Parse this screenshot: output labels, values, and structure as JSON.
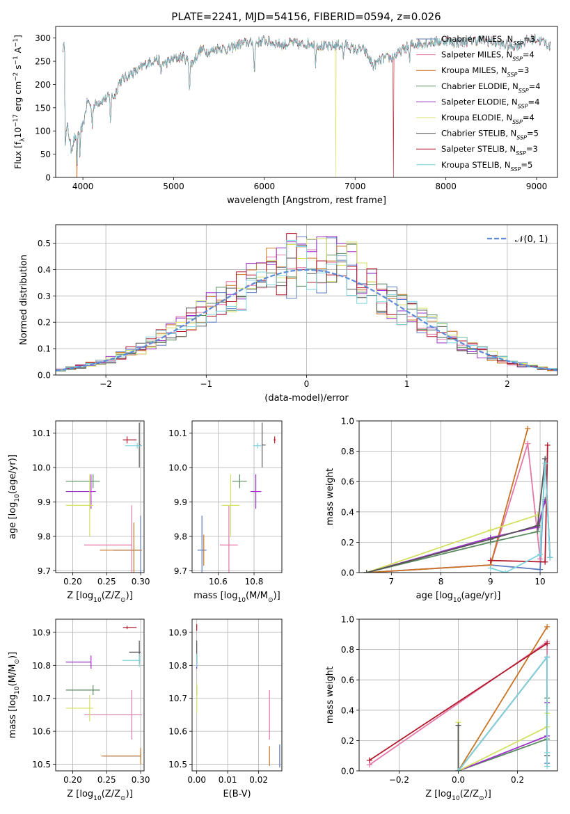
{
  "figure_title": "PLATE=2241, MJD=54156, FIBERID=0594, z=0.026",
  "series_names": [
    "Chabrier MILES, N$_{SSP}$=3",
    "Salpeter MILES, N$_{SSP}$=4",
    "Kroupa MILES, N$_{SSP}$=3",
    "Chabrier ELODIE, N$_{SSP}$=4",
    "Salpeter ELODIE, N$_{SSP}$=4",
    "Kroupa ELODIE, N$_{SSP}$=4",
    "Chabrier STELIB, N$_{SSP}$=5",
    "Salpeter STELIB, N$_{SSP}$=3",
    "Kroupa STELIB, N$_{SSP}$=5"
  ],
  "legend_labels": [
    [
      "Chabrier MILES, N",
      "SSP",
      "=3"
    ],
    [
      "Salpeter MILES, N",
      "SSP",
      "=4"
    ],
    [
      "Kroupa MILES, N",
      "SSP",
      "=3"
    ],
    [
      "Chabrier ELODIE, N",
      "SSP",
      "=4"
    ],
    [
      "Salpeter ELODIE, N",
      "SSP",
      "=4"
    ],
    [
      "Kroupa ELODIE, N",
      "SSP",
      "=4"
    ],
    [
      "Chabrier STELIB, N",
      "SSP",
      "=5"
    ],
    [
      "Salpeter STELIB, N",
      "SSP",
      "=3"
    ],
    [
      "Kroupa STELIB, N",
      "SSP",
      "=5"
    ]
  ],
  "colors": [
    "#5b7bbf",
    "#e377a8",
    "#c87425",
    "#5a8a5f",
    "#9b30c8",
    "#d4e060",
    "#555555",
    "#b2182b",
    "#7fd4dd"
  ],
  "chart_data": [
    {
      "id": "spectrum",
      "type": "line",
      "title": "PLATE=2241, MJD=54156, FIBERID=0594, z=0.026",
      "xlabel": "wavelength [Angstrom, rest frame]",
      "ylabel": [
        "Flux [f",
        "λ",
        "10",
        "−17",
        " erg cm",
        "−2",
        " s",
        "−1",
        " A",
        "−1",
        "]"
      ],
      "xlim": [
        3700,
        9230
      ],
      "ylim": [
        0,
        325
      ],
      "xticks": [
        4000,
        5000,
        6000,
        7000,
        8000,
        9000
      ],
      "yticks": [
        0,
        50,
        100,
        150,
        200,
        250,
        300
      ],
      "legend": "top-right",
      "spectrum_knots": [
        [
          3800,
          75
        ],
        [
          3830,
          110
        ],
        [
          3870,
          60
        ],
        [
          3900,
          80
        ],
        [
          3950,
          100
        ],
        [
          4000,
          110
        ],
        [
          4050,
          165
        ],
        [
          4100,
          150
        ],
        [
          4150,
          160
        ],
        [
          4200,
          165
        ],
        [
          4300,
          175
        ],
        [
          4350,
          175
        ],
        [
          4400,
          205
        ],
        [
          4500,
          220
        ],
        [
          4600,
          230
        ],
        [
          4700,
          245
        ],
        [
          4800,
          255
        ],
        [
          4900,
          245
        ],
        [
          5000,
          255
        ],
        [
          5100,
          260
        ],
        [
          5200,
          245
        ],
        [
          5300,
          275
        ],
        [
          5400,
          270
        ],
        [
          5500,
          280
        ],
        [
          5600,
          275
        ],
        [
          5700,
          285
        ],
        [
          5800,
          290
        ],
        [
          5900,
          290
        ],
        [
          6000,
          295
        ],
        [
          6100,
          290
        ],
        [
          6200,
          285
        ],
        [
          6300,
          290
        ],
        [
          6400,
          285
        ],
        [
          6500,
          290
        ],
        [
          6600,
          285
        ],
        [
          6700,
          280
        ],
        [
          6800,
          285
        ],
        [
          6900,
          285
        ],
        [
          7000,
          275
        ],
        [
          7100,
          275
        ],
        [
          7200,
          240
        ],
        [
          7300,
          255
        ],
        [
          7400,
          258
        ],
        [
          7500,
          270
        ],
        [
          7600,
          285
        ],
        [
          7700,
          288
        ],
        [
          7800,
          290
        ],
        [
          7900,
          292
        ],
        [
          8000,
          295
        ],
        [
          8100,
          290
        ],
        [
          8200,
          292
        ],
        [
          8300,
          295
        ],
        [
          8400,
          295
        ],
        [
          8500,
          292
        ],
        [
          8600,
          288
        ],
        [
          8700,
          282
        ],
        [
          8800,
          285
        ],
        [
          8900,
          295
        ],
        [
          9000,
          298
        ],
        [
          9100,
          290
        ],
        [
          9150,
          280
        ]
      ],
      "absorption_lines": [
        [
          3934,
          70
        ],
        [
          3968,
          60
        ],
        [
          4102,
          40
        ],
        [
          4304,
          55
        ],
        [
          4861,
          35
        ],
        [
          5175,
          60
        ],
        [
          5890,
          70
        ],
        [
          6563,
          40
        ],
        [
          6870,
          30
        ],
        [
          7600,
          40
        ]
      ],
      "masked_drops": [
        [
          3933,
          2
        ],
        [
          6785,
          5
        ],
        [
          7420,
          7
        ]
      ]
    },
    {
      "id": "residual-histogram",
      "type": "histogram",
      "xlabel": "(data-model)/error",
      "ylabel": "Normed distribution",
      "xlim": [
        -2.5,
        2.5
      ],
      "ylim": [
        0,
        0.57
      ],
      "xticks": [
        -2,
        -1,
        0,
        1,
        2
      ],
      "yticks": [
        0.0,
        0.1,
        0.2,
        0.3,
        0.4,
        0.5
      ],
      "reference_curve": "N(0,1)",
      "legend_label": "𝒩(0, 1)",
      "legend": "top-right",
      "bin_width": 0.1,
      "bin_start": -2.5
    },
    {
      "id": "age-vs-Z",
      "type": "errorbar",
      "xlabel": [
        "Z [log",
        "10",
        "(Z/Z",
        "⊙",
        ")]"
      ],
      "ylabel": [
        "age  [log",
        "10",
        "(age/yr)]"
      ],
      "xlim": [
        0.175,
        0.305
      ],
      "ylim": [
        9.695,
        10.135
      ],
      "xticks": [
        0.2,
        0.25,
        0.3
      ],
      "yticks": [
        9.7,
        9.8,
        9.9,
        10.0,
        10.1
      ],
      "points": [
        {
          "x": 0.3,
          "y": 9.76,
          "xerr_lo": 0.04,
          "xerr_hi": 0.0,
          "yerr": 0.1
        },
        {
          "x": 0.287,
          "y": 9.775,
          "xerr_lo": 0.07,
          "xerr_hi": 0.0,
          "yerr": 0.115
        },
        {
          "x": 0.29,
          "y": 9.76,
          "xerr_lo": 0.05,
          "xerr_hi": 0.012,
          "yerr": 0.08
        },
        {
          "x": 0.23,
          "y": 9.96,
          "xerr_lo": 0.04,
          "xerr_hi": 0.01,
          "yerr": 0.02
        },
        {
          "x": 0.227,
          "y": 9.93,
          "xerr_lo": 0.037,
          "xerr_hi": 0.007,
          "yerr": 0.05
        },
        {
          "x": 0.225,
          "y": 9.89,
          "xerr_lo": 0.035,
          "xerr_hi": 0.005,
          "yerr": 0.09
        },
        {
          "x": 0.298,
          "y": 10.065,
          "xerr_lo": 0.0,
          "xerr_hi": 0.002,
          "yerr": 0.065
        },
        {
          "x": 0.28,
          "y": 10.08,
          "xerr_lo": 0.006,
          "xerr_hi": 0.014,
          "yerr": 0.01
        },
        {
          "x": 0.295,
          "y": 10.063,
          "xerr_lo": 0.018,
          "xerr_hi": 0.007,
          "yerr": 0.008
        }
      ]
    },
    {
      "id": "age-vs-mass",
      "type": "errorbar",
      "xlabel": [
        "mass [log",
        "10",
        "(M/M",
        "⊙",
        ")]"
      ],
      "ylabel": "",
      "xlim": [
        10.455,
        10.955
      ],
      "ylim": [
        9.695,
        10.135
      ],
      "xticks": [
        10.6,
        10.8
      ],
      "yticks": [
        9.7,
        9.8,
        9.9,
        10.0,
        10.1
      ],
      "points": [
        {
          "x": 10.51,
          "y": 9.76,
          "xerr_lo": 0.025,
          "xerr_hi": 0.025,
          "yerr": 0.1
        },
        {
          "x": 10.66,
          "y": 9.775,
          "xerr_lo": 0.05,
          "xerr_hi": 0.05,
          "yerr": 0.115
        },
        {
          "x": 10.52,
          "y": 9.76,
          "xerr_lo": 0.0,
          "xerr_hi": 0.0,
          "yerr": 0.045
        },
        {
          "x": 10.72,
          "y": 9.96,
          "xerr_lo": 0.04,
          "xerr_hi": 0.04,
          "yerr": 0.02
        },
        {
          "x": 10.81,
          "y": 9.93,
          "xerr_lo": 0.03,
          "xerr_hi": 0.03,
          "yerr": 0.05
        },
        {
          "x": 10.67,
          "y": 9.89,
          "xerr_lo": 0.05,
          "xerr_hi": 0.05,
          "yerr": 0.09
        },
        {
          "x": 10.845,
          "y": 10.065,
          "xerr_lo": 0.0,
          "xerr_hi": 0.02,
          "yerr": 0.065
        },
        {
          "x": 10.915,
          "y": 10.08,
          "xerr_lo": 0.006,
          "xerr_hi": 0.006,
          "yerr": 0.01
        },
        {
          "x": 10.82,
          "y": 10.063,
          "xerr_lo": 0.025,
          "xerr_hi": 0.02,
          "yerr": 0.008
        }
      ]
    },
    {
      "id": "weight-vs-age",
      "type": "line",
      "xlabel": [
        "age  [log",
        "10",
        "(age/yr)]"
      ],
      "ylabel": "mass weight",
      "xlim": [
        6.35,
        10.35
      ],
      "ylim": [
        0,
        1.0
      ],
      "xticks": [
        7,
        8,
        9,
        10
      ],
      "yticks": [
        0.0,
        0.2,
        0.4,
        0.6,
        0.8,
        1.0
      ],
      "series": [
        {
          "points": [
            [
              6.5,
              0.0
            ],
            [
              9.0,
              0.05
            ],
            [
              10.0,
              0.02
            ],
            [
              10.1,
              0.75
            ],
            [
              10.2,
              0.1
            ]
          ]
        },
        {
          "points": [
            [
              6.5,
              0.0
            ],
            [
              9.0,
              0.05
            ],
            [
              9.75,
              0.85
            ],
            [
              10.0,
              0.09
            ]
          ]
        },
        {
          "points": [
            [
              6.5,
              0.0
            ],
            [
              9.0,
              0.05
            ],
            [
              9.75,
              0.95
            ]
          ]
        },
        {
          "points": [
            [
              6.5,
              0.0
            ],
            [
              9.0,
              0.2
            ],
            [
              9.95,
              0.27
            ],
            [
              10.1,
              0.48
            ]
          ]
        },
        {
          "points": [
            [
              6.5,
              0.0
            ],
            [
              9.0,
              0.23
            ],
            [
              9.95,
              0.3
            ],
            [
              10.1,
              0.47
            ]
          ]
        },
        {
          "points": [
            [
              6.5,
              0.0
            ],
            [
              9.0,
              0.28
            ],
            [
              9.95,
              0.38
            ]
          ]
        },
        {
          "points": [
            [
              6.5,
              0.0
            ],
            [
              9.0,
              0.22
            ],
            [
              9.95,
              0.31
            ],
            [
              10.1,
              0.75
            ],
            [
              10.2,
              0.1
            ]
          ]
        },
        {
          "points": [
            [
              9.0,
              0.08
            ],
            [
              10.1,
              0.07
            ],
            [
              10.15,
              0.84
            ]
          ]
        },
        {
          "points": [
            [
              9.0,
              0.03
            ],
            [
              9.3,
              0.0
            ],
            [
              10.0,
              0.12
            ],
            [
              10.1,
              0.72
            ],
            [
              10.2,
              0.1
            ]
          ]
        }
      ]
    },
    {
      "id": "mass-vs-Z",
      "type": "errorbar",
      "xlabel": [
        "Z [log",
        "10",
        "(Z/Z",
        "⊙",
        ")]"
      ],
      "ylabel": [
        "mass [log",
        "10",
        "(M/M",
        "⊙",
        ")]"
      ],
      "xlim": [
        0.175,
        0.305
      ],
      "ylim": [
        10.48,
        10.94
      ],
      "xticks": [
        0.2,
        0.25,
        0.3
      ],
      "yticks": [
        10.5,
        10.6,
        10.7,
        10.8,
        10.9
      ],
      "points": [
        {
          "x": 0.3,
          "y": 10.525,
          "xerr_lo": 0.055,
          "xerr_hi": 0.0,
          "yerr": 0.01
        },
        {
          "x": 0.287,
          "y": 10.65,
          "xerr_lo": 0.07,
          "xerr_hi": 0.015,
          "yerr": 0.075
        },
        {
          "x": 0.3,
          "y": 10.525,
          "xerr_lo": 0.058,
          "xerr_hi": 0.0,
          "yerr": 0.025
        },
        {
          "x": 0.23,
          "y": 10.725,
          "xerr_lo": 0.04,
          "xerr_hi": 0.01,
          "yerr": 0.015
        },
        {
          "x": 0.227,
          "y": 10.81,
          "xerr_lo": 0.037,
          "xerr_hi": 0.0,
          "yerr": 0.02
        },
        {
          "x": 0.225,
          "y": 10.67,
          "xerr_lo": 0.035,
          "xerr_hi": 0.005,
          "yerr": 0.04
        },
        {
          "x": 0.298,
          "y": 10.84,
          "xerr_lo": 0.015,
          "xerr_hi": 0.002,
          "yerr": 0.035
        },
        {
          "x": 0.28,
          "y": 10.915,
          "xerr_lo": 0.006,
          "xerr_hi": 0.014,
          "yerr": 0.005
        },
        {
          "x": 0.298,
          "y": 10.815,
          "xerr_lo": 0.025,
          "xerr_hi": 0.002,
          "yerr": 0.02
        }
      ]
    },
    {
      "id": "mass-vs-ebv",
      "type": "errorbar",
      "xlabel": "E(B-V)",
      "ylabel": "",
      "xlim": [
        -0.0015,
        0.0275
      ],
      "ylim": [
        10.48,
        10.94
      ],
      "xticks": [
        0.0,
        0.01,
        0.02
      ],
      "yticks": [
        10.5,
        10.6,
        10.7,
        10.8,
        10.9
      ],
      "points": [
        {
          "x": 0.0268,
          "y": 10.525,
          "xerr_lo": 0,
          "xerr_hi": 0,
          "yerr": 0.035
        },
        {
          "x": 0.0235,
          "y": 10.65,
          "xerr_lo": 0,
          "xerr_hi": 0,
          "yerr": 0.075
        },
        {
          "x": 0.0235,
          "y": 10.525,
          "xerr_lo": 0,
          "xerr_hi": 0,
          "yerr": 0.03
        },
        {
          "x": 0.0,
          "y": 10.725,
          "xerr_lo": 0,
          "xerr_hi": 0,
          "yerr": 0.015
        },
        {
          "x": 0.0,
          "y": 10.81,
          "xerr_lo": 0,
          "xerr_hi": 0,
          "yerr": 0.02
        },
        {
          "x": 0.0,
          "y": 10.7,
          "xerr_lo": 0,
          "xerr_hi": 0,
          "yerr": 0.045
        },
        {
          "x": 0.0,
          "y": 10.84,
          "xerr_lo": 0,
          "xerr_hi": 0,
          "yerr": 0.035
        },
        {
          "x": 0.0,
          "y": 10.915,
          "xerr_lo": 0,
          "xerr_hi": 0,
          "yerr": 0.01
        },
        {
          "x": 0.0,
          "y": 10.815,
          "xerr_lo": 0,
          "xerr_hi": 0,
          "yerr": 0.02
        }
      ]
    },
    {
      "id": "weight-vs-Z",
      "type": "line",
      "xlabel": [
        "Z [log",
        "10",
        "(Z/Z",
        "⊙",
        ")]"
      ],
      "ylabel": "mass weight",
      "xlim": [
        -0.335,
        0.335
      ],
      "ylim": [
        0,
        1.0
      ],
      "xticks": [
        -0.2,
        0.0,
        0.2
      ],
      "yticks": [
        0.0,
        0.2,
        0.4,
        0.6,
        0.8,
        1.0
      ],
      "series": [
        {
          "points": [
            [
              0.0,
              0.0
            ],
            [
              0.3,
              0.75
            ],
            [
              0.3,
              0.1
            ],
            [
              0.3,
              0.05
            ]
          ]
        },
        {
          "points": [
            [
              -0.3,
              0.04
            ],
            [
              0.3,
              0.85
            ],
            [
              0.3,
              0.1
            ]
          ]
        },
        {
          "points": [
            [
              0.0,
              0.0
            ],
            [
              0.3,
              0.95
            ]
          ]
        },
        {
          "points": [
            [
              0.0,
              0.0
            ],
            [
              0.3,
              0.21
            ],
            [
              0.3,
              0.48
            ]
          ]
        },
        {
          "points": [
            [
              0.0,
              0.0
            ],
            [
              0.3,
              0.23
            ],
            [
              0.3,
              0.45
            ]
          ]
        },
        {
          "points": [
            [
              0.0,
              0.32
            ],
            [
              0.0,
              0.0
            ],
            [
              0.3,
              0.29
            ],
            [
              0.3,
              0.38
            ]
          ]
        },
        {
          "points": [
            [
              0.0,
              0.3
            ],
            [
              0.0,
              0.0
            ],
            [
              0.3,
              0.75
            ],
            [
              0.3,
              0.1
            ]
          ]
        },
        {
          "points": [
            [
              -0.3,
              0.07
            ],
            [
              0.3,
              0.84
            ]
          ]
        },
        {
          "points": [
            [
              0.0,
              0.0
            ],
            [
              0.3,
              0.75
            ],
            [
              0.3,
              0.03
            ],
            [
              0.3,
              0.12
            ]
          ]
        }
      ]
    }
  ]
}
